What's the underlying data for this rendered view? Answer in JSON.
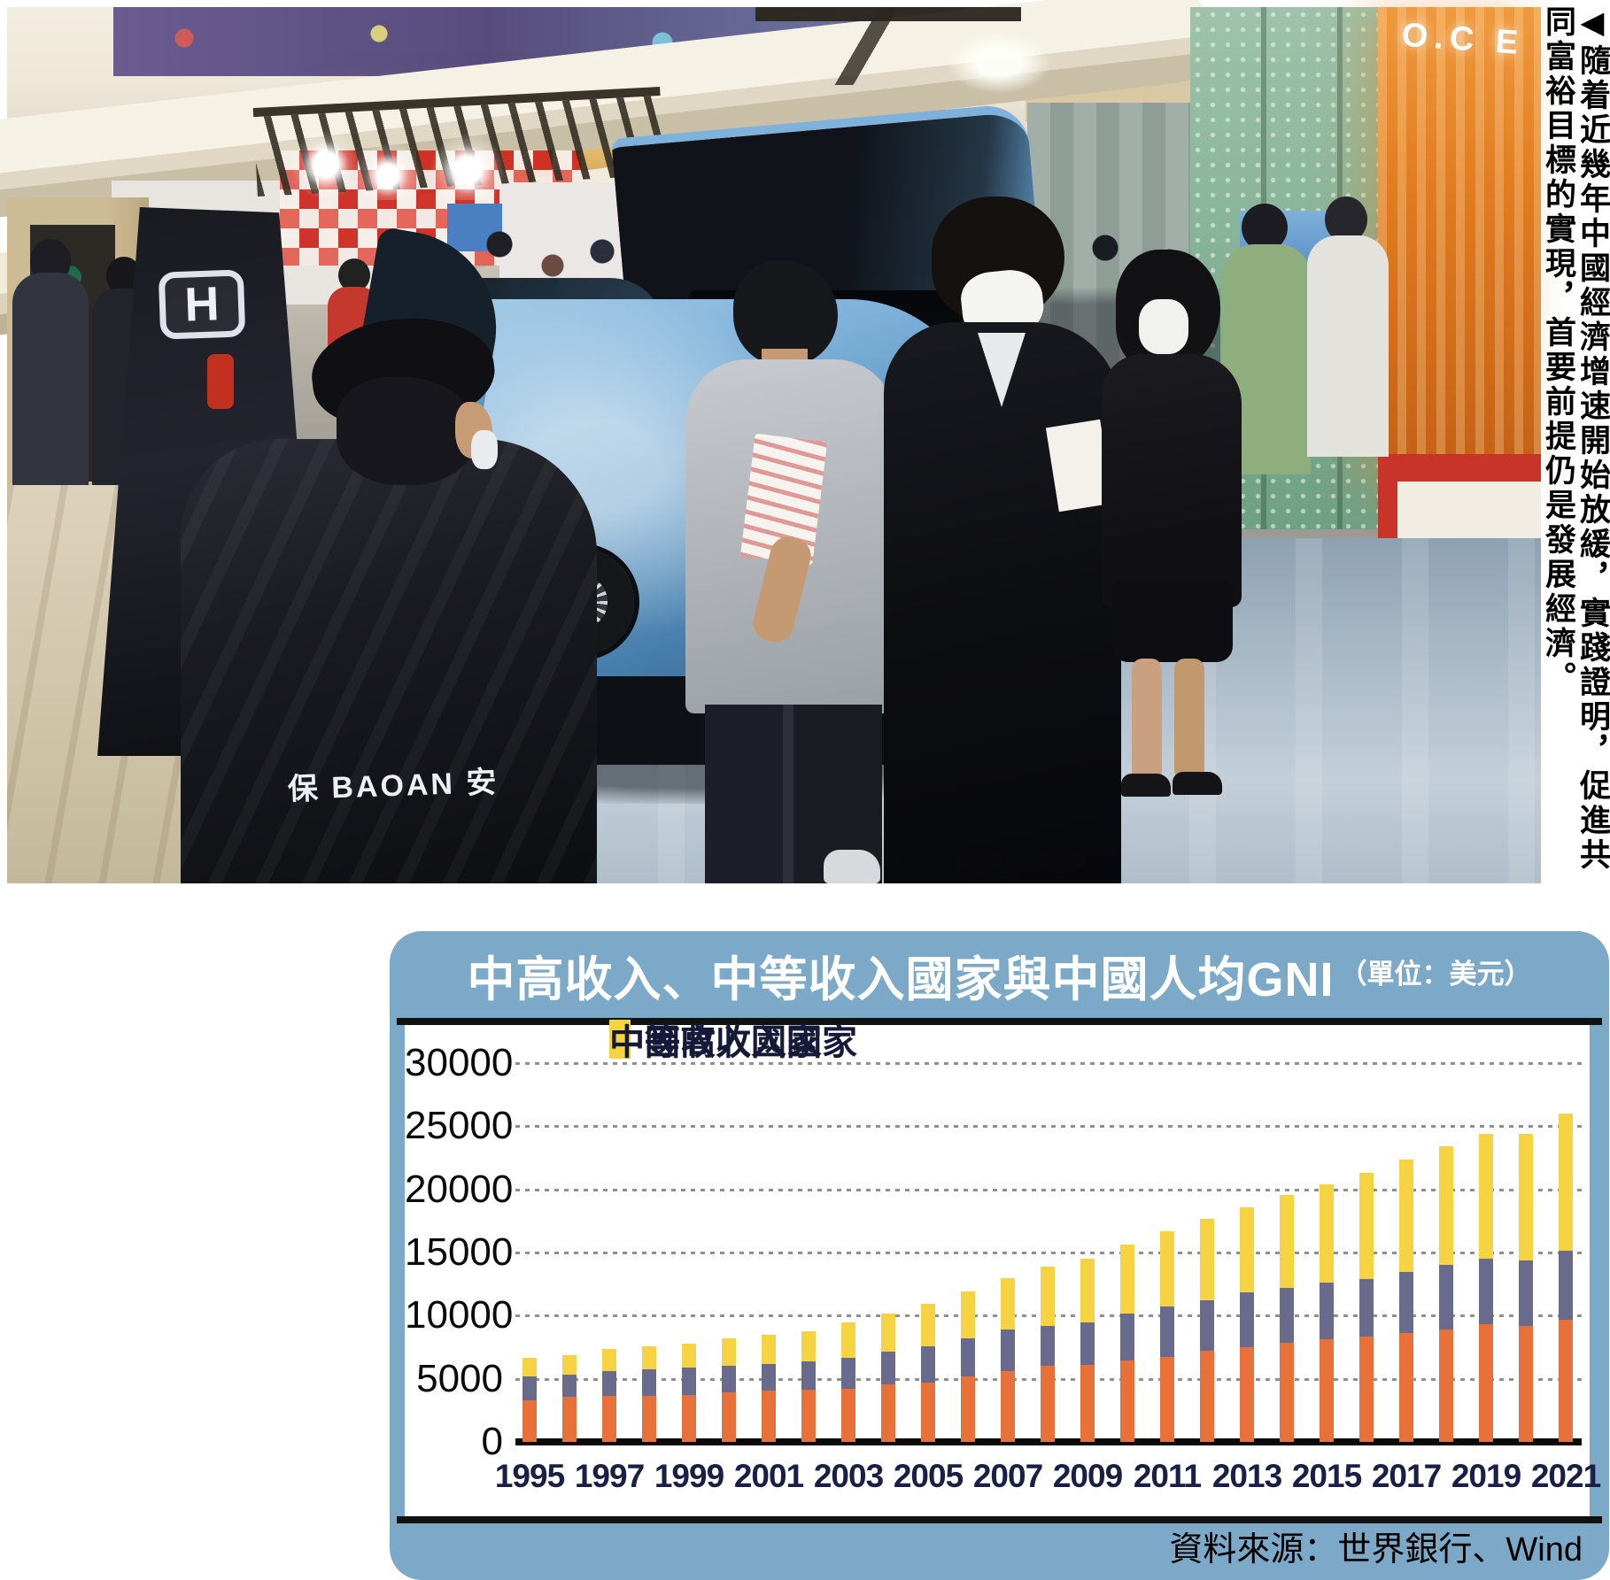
{
  "photo": {
    "caption": "◀隨着近幾年中國經濟增速開始放緩，實踐證明，促進共同富裕目標的實現，首要前提仍是發展經濟。",
    "signs": {
      "mall_sign": "O.C E",
      "honda_logo": "H",
      "guard_jacket": "保 BAOAN 安"
    }
  },
  "chart": {
    "title_main": "中高收入、中等收入國家與中國人均GNI",
    "title_unit": "（單位：美元）",
    "source": "資料來源：世界銀行、Wind",
    "colors": {
      "card_blue": "#7CA9C8",
      "bar_orange": "#E8713A",
      "bar_purple": "#6A6A8C",
      "bar_yellow": "#F5D342",
      "grid": "#8f8f8f",
      "tick_text": "#1A2045"
    }
  },
  "chart_data": {
    "type": "bar",
    "stacked": true,
    "title": "中高收入、中等收入國家與中國人均GNI（單位：美元）",
    "xlabel": "",
    "ylabel": "",
    "unit": "美元",
    "ylim": [
      0,
      30000
    ],
    "yticks": [
      0,
      5000,
      10000,
      15000,
      20000,
      25000,
      30000
    ],
    "grid": "dotted-horizontal",
    "legend_position": "top-left-inside",
    "categories": [
      "1995",
      "1996",
      "1997",
      "1998",
      "1999",
      "2000",
      "2001",
      "2002",
      "2003",
      "2004",
      "2005",
      "2006",
      "2007",
      "2008",
      "2009",
      "2010",
      "2011",
      "2012",
      "2013",
      "2014",
      "2015",
      "2016",
      "2017",
      "2018",
      "2019",
      "2020",
      "2021"
    ],
    "x_tick_labels": [
      "1995",
      "1997",
      "1999",
      "2001",
      "2003",
      "2005",
      "2007",
      "2009",
      "2011",
      "2013",
      "2015",
      "2017",
      "2019",
      "2021"
    ],
    "series": [
      {
        "name": "中等高收入國家",
        "color": "#E8713A",
        "values": [
          3300,
          3550,
          3650,
          3650,
          3750,
          3900,
          4050,
          4150,
          4200,
          4550,
          4700,
          5200,
          5600,
          6000,
          6100,
          6450,
          6750,
          7200,
          7500,
          7850,
          8100,
          8350,
          8650,
          8900,
          9350,
          9200,
          9650
        ]
      },
      {
        "name": "中等收入國家",
        "color": "#6A6A8C",
        "values": [
          1900,
          1750,
          1950,
          2100,
          2150,
          2100,
          2150,
          2250,
          2450,
          2600,
          2850,
          3000,
          3300,
          3200,
          3400,
          3700,
          4000,
          4000,
          4350,
          4350,
          4550,
          4550,
          4800,
          5150,
          5150,
          5150,
          5500
        ]
      },
      {
        "name": "中國",
        "color": "#F5D342",
        "values": [
          1450,
          1600,
          1750,
          1850,
          1850,
          2200,
          2250,
          2400,
          2800,
          3050,
          3350,
          3700,
          4100,
          4700,
          5000,
          5450,
          5950,
          6500,
          6700,
          7350,
          7750,
          8400,
          8900,
          9350,
          9900,
          10050,
          10850
        ]
      }
    ],
    "source": "資料來源：世界銀行、Wind"
  }
}
